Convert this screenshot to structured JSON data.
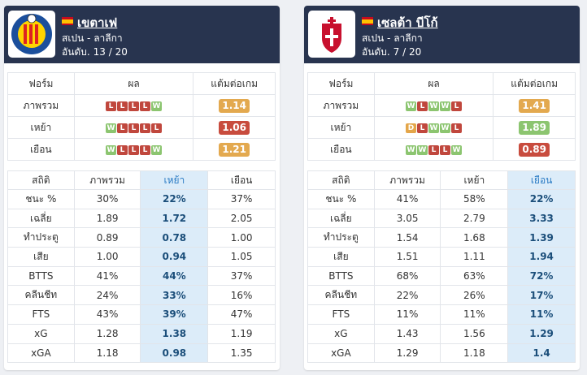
{
  "teams": [
    {
      "name": "เขตาเฟ",
      "league": "สเปน - ลาลีกา",
      "rank_label": "อันดับ.",
      "rank_value": "13 / 20",
      "form_headers": [
        "ฟอร์ม",
        "ผล",
        "แต้มต่อเกม"
      ],
      "form_rows": [
        {
          "label": "ภาพรวม",
          "results": [
            "L",
            "L",
            "L",
            "L",
            "W"
          ],
          "ppg": "1.14",
          "ppg_color": "#e3a94f"
        },
        {
          "label": "เหย้า",
          "results": [
            "W",
            "L",
            "L",
            "L",
            "L"
          ],
          "ppg": "1.06",
          "ppg_color": "#c84c3e"
        },
        {
          "label": "เยือน",
          "results": [
            "W",
            "L",
            "L",
            "L",
            "W"
          ],
          "ppg": "1.21",
          "ppg_color": "#e3a94f"
        }
      ],
      "stats_headers": [
        "สถิติ",
        "ภาพรวม",
        "เหย้า",
        "เยือน"
      ],
      "highlight_col": 2,
      "stats_rows": [
        [
          "ชนะ %",
          "30%",
          "22%",
          "37%"
        ],
        [
          "เฉลี่ย",
          "1.89",
          "1.72",
          "2.05"
        ],
        [
          "ทำประตู",
          "0.89",
          "0.78",
          "1.00"
        ],
        [
          "เสีย",
          "1.00",
          "0.94",
          "1.05"
        ],
        [
          "BTTS",
          "41%",
          "44%",
          "37%"
        ],
        [
          "คลีนชีท",
          "24%",
          "33%",
          "16%"
        ],
        [
          "FTS",
          "43%",
          "39%",
          "47%"
        ],
        [
          "xG",
          "1.28",
          "1.38",
          "1.19"
        ],
        [
          "xGA",
          "1.18",
          "0.98",
          "1.35"
        ]
      ]
    },
    {
      "name": "เซลต้า บีโก้",
      "league": "สเปน - ลาลีกา",
      "rank_label": "อันดับ.",
      "rank_value": "7 / 20",
      "form_headers": [
        "ฟอร์ม",
        "ผล",
        "แต้มต่อเกม"
      ],
      "form_rows": [
        {
          "label": "ภาพรวม",
          "results": [
            "W",
            "L",
            "W",
            "W",
            "L"
          ],
          "ppg": "1.41",
          "ppg_color": "#e3a94f"
        },
        {
          "label": "เหย้า",
          "results": [
            "D",
            "L",
            "W",
            "W",
            "L"
          ],
          "ppg": "1.89",
          "ppg_color": "#8cc570"
        },
        {
          "label": "เยือน",
          "results": [
            "W",
            "W",
            "L",
            "L",
            "W"
          ],
          "ppg": "0.89",
          "ppg_color": "#c84c3e"
        }
      ],
      "stats_headers": [
        "สถิติ",
        "ภาพรวม",
        "เหย้า",
        "เยือน"
      ],
      "highlight_col": 3,
      "stats_rows": [
        [
          "ชนะ %",
          "41%",
          "58%",
          "22%"
        ],
        [
          "เฉลี่ย",
          "3.05",
          "2.79",
          "3.33"
        ],
        [
          "ทำประตู",
          "1.54",
          "1.68",
          "1.39"
        ],
        [
          "เสีย",
          "1.51",
          "1.11",
          "1.94"
        ],
        [
          "BTTS",
          "68%",
          "63%",
          "72%"
        ],
        [
          "คลีนชีท",
          "22%",
          "26%",
          "17%"
        ],
        [
          "FTS",
          "11%",
          "11%",
          "11%"
        ],
        [
          "xG",
          "1.43",
          "1.56",
          "1.29"
        ],
        [
          "xGA",
          "1.29",
          "1.18",
          "1.4"
        ]
      ]
    }
  ]
}
